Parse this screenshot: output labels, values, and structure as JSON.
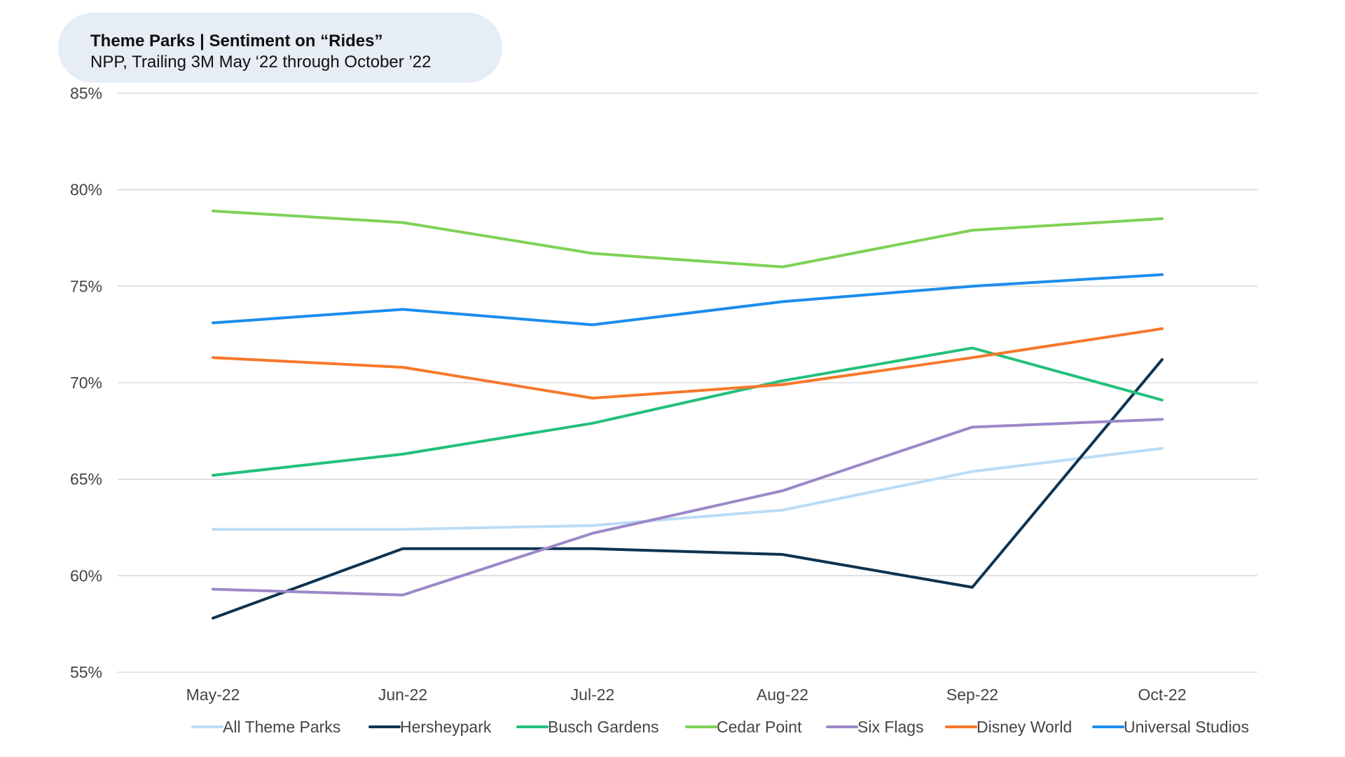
{
  "title": "Theme Parks | Sentiment on “Rides”",
  "subtitle": "NPP, Trailing 3M May ‘22 through October ’22",
  "chart_data": {
    "type": "line",
    "title": "Theme Parks | Sentiment on “Rides”",
    "subtitle": "NPP, Trailing 3M May ‘22 through October ’22",
    "xlabel": "",
    "ylabel": "",
    "categories": [
      "May-22",
      "Jun-22",
      "Jul-22",
      "Aug-22",
      "Sep-22",
      "Oct-22"
    ],
    "ylim": [
      55,
      85
    ],
    "yticks": [
      55,
      60,
      65,
      70,
      75,
      80,
      85
    ],
    "ytick_labels": [
      "55%",
      "60%",
      "65%",
      "70%",
      "75%",
      "80%",
      "85%"
    ],
    "grid": true,
    "legend_position": "bottom",
    "series": [
      {
        "name": "All Theme Parks",
        "color": "#bcdcf5",
        "values": [
          62.4,
          62.4,
          62.6,
          63.4,
          65.4,
          66.6
        ]
      },
      {
        "name": "Hersheypark",
        "color": "#0e3350",
        "values": [
          57.8,
          61.4,
          61.4,
          61.1,
          59.4,
          71.2
        ]
      },
      {
        "name": "Busch Gardens",
        "color": "#23c07c",
        "values": [
          65.2,
          66.3,
          67.9,
          70.1,
          71.8,
          69.1
        ]
      },
      {
        "name": "Cedar Point",
        "color": "#7ed157",
        "values": [
          78.9,
          78.3,
          76.7,
          76.0,
          77.9,
          78.5
        ]
      },
      {
        "name": "Six Flags",
        "color": "#9b88c8",
        "values": [
          59.3,
          59.0,
          62.2,
          64.4,
          67.7,
          68.1
        ]
      },
      {
        "name": "Disney World",
        "color": "#f6782b",
        "values": [
          71.3,
          70.8,
          69.2,
          69.9,
          71.3,
          72.8
        ]
      },
      {
        "name": "Universal Studios",
        "color": "#1c8ded",
        "values": [
          73.1,
          73.8,
          73.0,
          74.2,
          75.0,
          75.6
        ]
      }
    ]
  }
}
